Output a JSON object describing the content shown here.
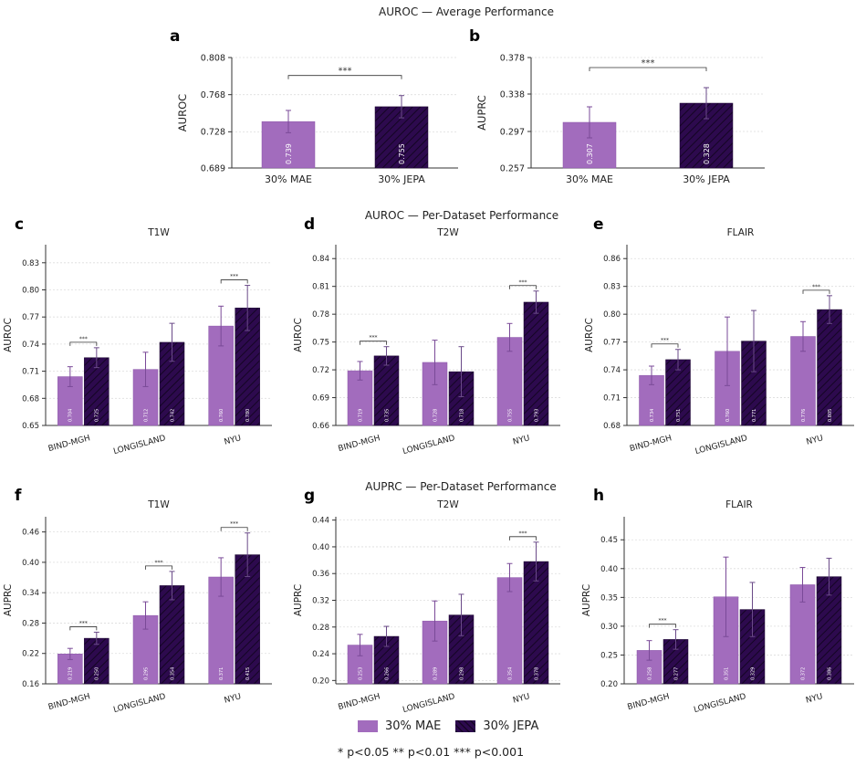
{
  "headers": {
    "avg": "AUROC — Average Performance",
    "auroc_ds": "AUROC — Per-Dataset Performance",
    "auprc_ds": "AUPRC — Per-Dataset Performance"
  },
  "legend": {
    "mae": "30% MAE",
    "jepa": "30% JEPA"
  },
  "significance_note": "* p<0.05   ** p<0.01   *** p<0.001",
  "colors": {
    "mae": "#a26cbd",
    "jepa": "#2d0a4e"
  },
  "chart_data": [
    {
      "panel": "a",
      "type": "bar",
      "title": "",
      "xlabel": "",
      "ylabel": "AUROC",
      "ylim": [
        0.689,
        0.808
      ],
      "ytick_labels": [
        "0.689",
        "0.728",
        "0.768",
        "0.808"
      ],
      "categories": [
        "30% MAE",
        "30% JEPA"
      ],
      "values": [
        0.739,
        0.755
      ],
      "errors": [
        0.012,
        0.012
      ],
      "value_labels": [
        "0.739",
        "0.755"
      ],
      "significance": [
        {
          "category": 0,
          "label": "***"
        }
      ]
    },
    {
      "panel": "b",
      "type": "bar",
      "title": "",
      "xlabel": "",
      "ylabel": "AUPRC",
      "ylim": [
        0.257,
        0.378
      ],
      "ytick_labels": [
        "0.257",
        "0.297",
        "0.338",
        "0.378"
      ],
      "categories": [
        "30% MAE",
        "30% JEPA"
      ],
      "values": [
        0.307,
        0.328
      ],
      "errors": [
        0.017,
        0.017
      ],
      "value_labels": [
        "0.307",
        "0.328"
      ],
      "significance": [
        {
          "category": 0,
          "label": "***"
        }
      ]
    },
    {
      "panel": "c",
      "type": "bar",
      "title": "T1W",
      "xlabel": "",
      "ylabel": "AUROC",
      "ylim": [
        0.65,
        0.85
      ],
      "ytick_labels": [
        "0.65",
        "0.68",
        "0.71",
        "0.74",
        "0.77",
        "0.80",
        "0.83"
      ],
      "categories": [
        "BIND-MGH",
        "LONGISLAND",
        "NYU"
      ],
      "series": [
        {
          "name": "30% MAE",
          "values": [
            0.704,
            0.712,
            0.76
          ],
          "errors": [
            0.011,
            0.019,
            0.022
          ],
          "labels": [
            "0.704",
            "0.712",
            "0.760"
          ]
        },
        {
          "name": "30% JEPA",
          "values": [
            0.725,
            0.742,
            0.78
          ],
          "errors": [
            0.011,
            0.021,
            0.025
          ],
          "labels": [
            "0.725",
            "0.742",
            "0.780"
          ]
        }
      ],
      "significance": [
        {
          "category": 0,
          "label": "***"
        },
        {
          "category": 2,
          "label": "***"
        }
      ]
    },
    {
      "panel": "d",
      "type": "bar",
      "title": "T2W",
      "xlabel": "",
      "ylabel": "AUROC",
      "ylim": [
        0.66,
        0.855
      ],
      "ytick_labels": [
        "0.66",
        "0.69",
        "0.72",
        "0.75",
        "0.78",
        "0.81",
        "0.84"
      ],
      "categories": [
        "BIND-MGH",
        "LONGISLAND",
        "NYU"
      ],
      "series": [
        {
          "name": "30% MAE",
          "values": [
            0.719,
            0.728,
            0.755
          ],
          "errors": [
            0.01,
            0.024,
            0.015
          ],
          "labels": [
            "0.719",
            "0.728",
            "0.755"
          ]
        },
        {
          "name": "30% JEPA",
          "values": [
            0.735,
            0.718,
            0.793
          ],
          "errors": [
            0.01,
            0.027,
            0.012
          ],
          "labels": [
            "0.735",
            "0.718",
            "0.793"
          ]
        }
      ],
      "significance": [
        {
          "category": 0,
          "label": "***"
        },
        {
          "category": 2,
          "label": "***"
        }
      ]
    },
    {
      "panel": "e",
      "type": "bar",
      "title": "FLAIR",
      "xlabel": "",
      "ylabel": "AUROC",
      "ylim": [
        0.68,
        0.875
      ],
      "ytick_labels": [
        "0.68",
        "0.71",
        "0.74",
        "0.77",
        "0.80",
        "0.83",
        "0.86"
      ],
      "categories": [
        "BIND-MGH",
        "LONGISLAND",
        "NYU"
      ],
      "series": [
        {
          "name": "30% MAE",
          "values": [
            0.734,
            0.76,
            0.776
          ],
          "errors": [
            0.01,
            0.037,
            0.016
          ],
          "labels": [
            "0.734",
            "0.760",
            "0.776"
          ]
        },
        {
          "name": "30% JEPA",
          "values": [
            0.751,
            0.771,
            0.805
          ],
          "errors": [
            0.011,
            0.033,
            0.015
          ],
          "labels": [
            "0.751",
            "0.771",
            "0.805"
          ]
        }
      ],
      "significance": [
        {
          "category": 0,
          "label": "***"
        },
        {
          "category": 2,
          "label": "***"
        }
      ]
    },
    {
      "panel": "f",
      "type": "bar",
      "title": "T1W",
      "xlabel": "",
      "ylabel": "AUPRC",
      "ylim": [
        0.16,
        0.49
      ],
      "ytick_labels": [
        "0.16",
        "0.22",
        "0.28",
        "0.34",
        "0.40",
        "0.46"
      ],
      "categories": [
        "BIND-MGH",
        "LONGISLAND",
        "NYU"
      ],
      "series": [
        {
          "name": "30% MAE",
          "values": [
            0.219,
            0.295,
            0.371
          ],
          "errors": [
            0.011,
            0.027,
            0.038
          ],
          "labels": [
            "0.219",
            "0.295",
            "0.371"
          ]
        },
        {
          "name": "30% JEPA",
          "values": [
            0.25,
            0.354,
            0.415
          ],
          "errors": [
            0.012,
            0.028,
            0.043
          ],
          "labels": [
            "0.250",
            "0.354",
            "0.415"
          ]
        }
      ],
      "significance": [
        {
          "category": 0,
          "label": "***"
        },
        {
          "category": 1,
          "label": "***"
        },
        {
          "category": 2,
          "label": "***"
        }
      ]
    },
    {
      "panel": "g",
      "type": "bar",
      "title": "T2W",
      "xlabel": "",
      "ylabel": "AUPRC",
      "ylim": [
        0.195,
        0.445
      ],
      "ytick_labels": [
        "0.20",
        "0.24",
        "0.28",
        "0.32",
        "0.36",
        "0.40",
        "0.44"
      ],
      "categories": [
        "BIND-MGH",
        "LONGISLAND",
        "NYU"
      ],
      "series": [
        {
          "name": "30% MAE",
          "values": [
            0.253,
            0.289,
            0.354
          ],
          "errors": [
            0.016,
            0.03,
            0.021
          ],
          "labels": [
            "0.253",
            "0.289",
            "0.354"
          ]
        },
        {
          "name": "30% JEPA",
          "values": [
            0.266,
            0.298,
            0.378
          ],
          "errors": [
            0.015,
            0.031,
            0.029
          ],
          "labels": [
            "0.266",
            "0.298",
            "0.378"
          ]
        }
      ],
      "significance": [
        {
          "category": 2,
          "label": "***"
        }
      ]
    },
    {
      "panel": "h",
      "type": "bar",
      "title": "FLAIR",
      "xlabel": "",
      "ylabel": "AUPRC",
      "ylim": [
        0.2,
        0.49
      ],
      "ytick_labels": [
        "0.20",
        "0.25",
        "0.30",
        "0.35",
        "0.40",
        "0.45"
      ],
      "categories": [
        "BIND-MGH",
        "LONGISLAND",
        "NYU"
      ],
      "series": [
        {
          "name": "30% MAE",
          "values": [
            0.258,
            0.351,
            0.372
          ],
          "errors": [
            0.017,
            0.069,
            0.03
          ],
          "labels": [
            "0.258",
            "0.351",
            "0.372"
          ]
        },
        {
          "name": "30% JEPA",
          "values": [
            0.277,
            0.329,
            0.386
          ],
          "errors": [
            0.017,
            0.047,
            0.032
          ],
          "labels": [
            "0.277",
            "0.329",
            "0.386"
          ]
        }
      ],
      "significance": [
        {
          "category": 0,
          "label": "***"
        }
      ]
    }
  ]
}
